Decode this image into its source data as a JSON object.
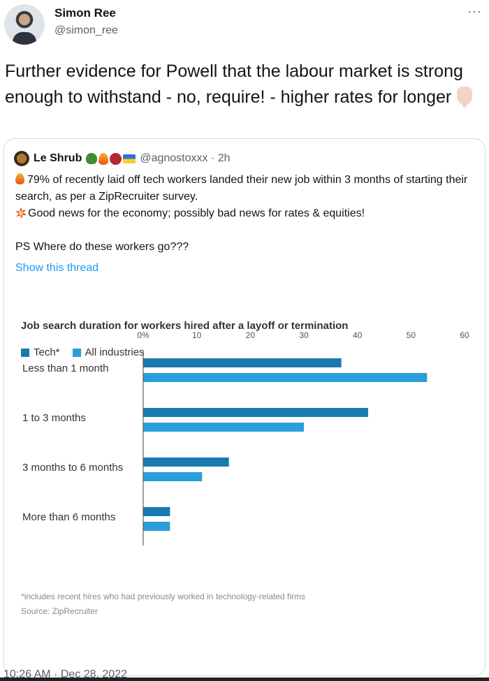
{
  "author": {
    "display_name": "Simon Ree",
    "handle": "@simon_ree"
  },
  "more_icon": "···",
  "tweet": {
    "text": "Further evidence for Powell that the labour market is strong enough to withstand - no, require! - higher rates for longer"
  },
  "quote": {
    "display_name": "Le Shrub",
    "handle_time": "@agnostoxxx · 2h",
    "line1": "79% of recently laid off tech workers landed their new job within 3 months of starting their search, as per a ZipRecruiter survey.",
    "line2": "Good news for the economy; possibly bad news for rates & equities!",
    "line3": "PS Where do these workers go???",
    "show_thread": "Show this thread"
  },
  "chart_data": {
    "type": "bar",
    "orientation": "horizontal",
    "title": "Job search duration for workers hired after a layoff or termination",
    "categories": [
      "Less than 1 month",
      "1 to 3 months",
      "3 months to 6 months",
      "More than 6 months"
    ],
    "series": [
      {
        "name": "Tech*",
        "values": [
          37,
          42,
          16,
          5
        ],
        "color": "#1a7ab0"
      },
      {
        "name": "All industries",
        "values": [
          53,
          30,
          11,
          5
        ],
        "color": "#2a9ed8"
      }
    ],
    "xlim": [
      0,
      60
    ],
    "ticks": [
      "0%",
      "10",
      "20",
      "30",
      "40",
      "50",
      "60"
    ],
    "tick_values": [
      0,
      10,
      20,
      30,
      40,
      50,
      60
    ],
    "legend_position": "top-left",
    "footnote": "*includes recent hires who had previously worked in technology-related firms",
    "source": "Source: ZipRecruiter"
  },
  "timestamp": "10:26 AM · Dec 28, 2022"
}
